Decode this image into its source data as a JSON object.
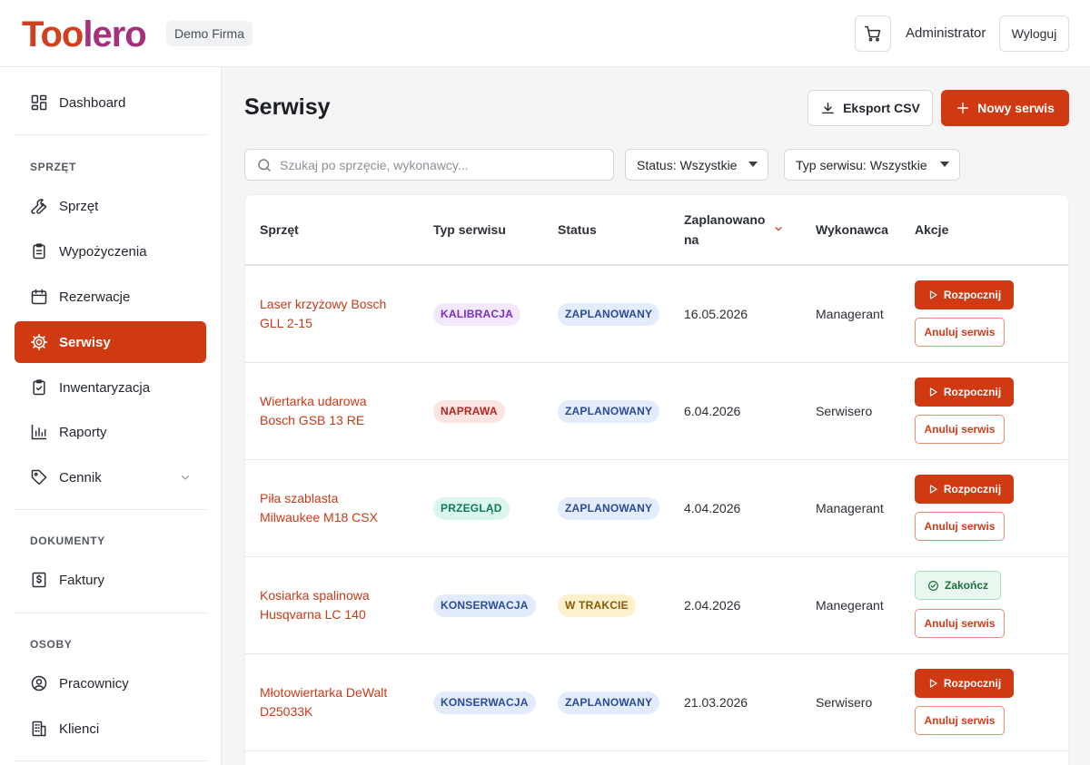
{
  "header": {
    "logo_part1": "Too",
    "logo_part2": "lero",
    "company": "Demo Firma",
    "user": "Administrator",
    "logout": "Wyloguj"
  },
  "sidebar": {
    "dashboard": "Dashboard",
    "sections": {
      "sprzet": "SPRZĘT",
      "dokumenty": "DOKUMENTY",
      "osoby": "OSOBY"
    },
    "items": {
      "sprzet": "Sprzęt",
      "wypozyczenia": "Wypożyczenia",
      "rezerwacje": "Rezerwacje",
      "serwisy": "Serwisy",
      "inwentaryzacja": "Inwentaryzacja",
      "raporty": "Raporty",
      "cennik": "Cennik",
      "faktury": "Faktury",
      "pracownicy": "Pracownicy",
      "klienci": "Klienci"
    },
    "active": "serwisy"
  },
  "main": {
    "title": "Serwisy",
    "export_label": "Eksport CSV",
    "new_label": "Nowy serwis",
    "search_placeholder": "Szukaj po sprzęcie, wykonawcy...",
    "filter_status": "Status: Wszystkie",
    "filter_type": "Typ serwisu: Wszystkie"
  },
  "table": {
    "columns": {
      "equipment": "Sprzęt",
      "type": "Typ serwisu",
      "status": "Status",
      "planned_line1": "Zaplanowano",
      "planned_line2": "na",
      "contractor": "Wykonawca",
      "actions": "Akcje"
    },
    "action_labels": {
      "start": "Rozpocznij",
      "finish": "Zakończ",
      "cancel": "Anuluj serwis"
    },
    "rows": [
      {
        "equipment_line1": "Laser krzyżowy Bosch",
        "equipment_line2": "GLL 2-15",
        "type": "KALIBRACJA",
        "status": "ZAPLANOWANY",
        "date": "16.05.2026",
        "contractor": "Managerant"
      },
      {
        "equipment_line1": "Wiertarka udarowa",
        "equipment_line2": "Bosch GSB 13 RE",
        "type": "NAPRAWA",
        "status": "ZAPLANOWANY",
        "date": "6.04.2026",
        "contractor": "Serwisero"
      },
      {
        "equipment_line1": "Piła szablasta",
        "equipment_line2": "Milwaukee M18 CSX",
        "type": "PRZEGLĄD",
        "status": "ZAPLANOWANY",
        "date": "4.04.2026",
        "contractor": "Managerant"
      },
      {
        "equipment_line1": "Kosiarka spalinowa",
        "equipment_line2": "Husqvarna LC 140",
        "type": "KONSERWACJA",
        "status": "W TRAKCIE",
        "date": "2.04.2026",
        "contractor": "Manegerant"
      },
      {
        "equipment_line1": "Młotowiertarka DeWalt",
        "equipment_line2": "D25033K",
        "type": "KONSERWACJA",
        "status": "ZAPLANOWANY",
        "date": "21.03.2026",
        "contractor": "Serwisero"
      }
    ]
  }
}
